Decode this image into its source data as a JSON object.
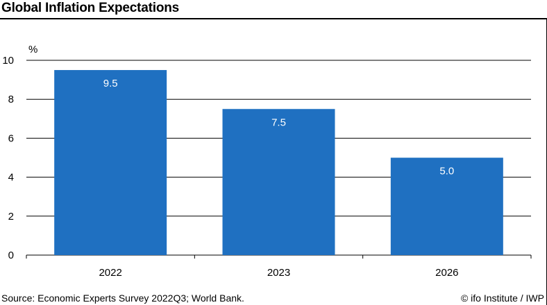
{
  "header": {
    "title": "Global Inflation Expectations"
  },
  "footer": {
    "source": "Source: Economic Experts Survey 2022Q3; World Bank.",
    "credit": "© ifo Institute / IWP"
  },
  "colors": {
    "bar": "#1f70c1",
    "grid": "#000000",
    "label": "#ffffff"
  },
  "chart_data": {
    "type": "bar",
    "title": "Global Inflation Expectations",
    "categories": [
      "2022",
      "2023",
      "2026"
    ],
    "values": [
      9.5,
      7.5,
      5.0
    ],
    "value_labels": [
      "9.5",
      "7.5",
      "5.0"
    ],
    "xlabel": "",
    "ylabel": "%",
    "ylim": [
      0,
      10
    ],
    "yticks": [
      0,
      2,
      4,
      6,
      8,
      10
    ],
    "grid": true,
    "legend": "none"
  }
}
